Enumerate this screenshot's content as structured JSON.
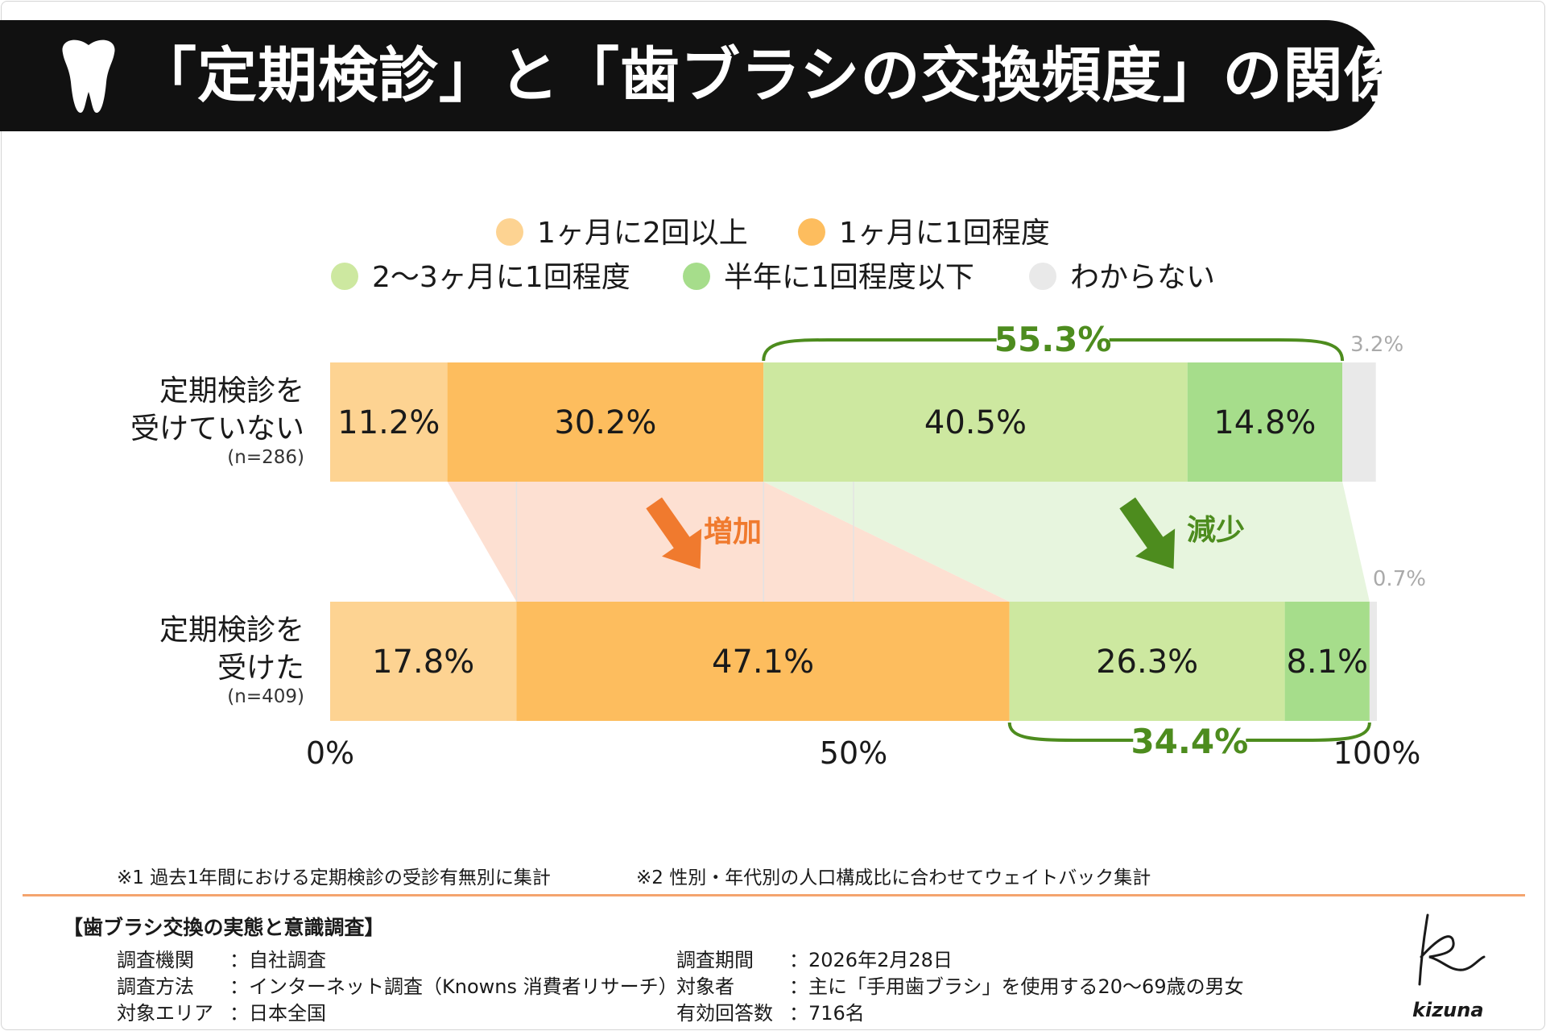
{
  "title": "「定期検診」と「歯ブラシの交換頻度」の関係",
  "chart_data": {
    "type": "stacked-bar-100",
    "title": "「定期検診」と「歯ブラシの交換頻度」の関係",
    "legend": [
      {
        "name": "1ヶ月に2回以上",
        "color": "#fdd392"
      },
      {
        "name": "1ヶ月に1回程度",
        "color": "#fdbd5e"
      },
      {
        "name": "2〜3ヶ月に1回程度",
        "color": "#cde8a0"
      },
      {
        "name": "半年に1回程度以下",
        "color": "#a6dd8b"
      },
      {
        "name": "わからない",
        "color": "#e9e9e9"
      }
    ],
    "categories": [
      {
        "label_line1": "定期検診を",
        "label_line2": "受けていない",
        "n": "(n=286)",
        "values": [
          11.2,
          30.2,
          40.5,
          14.8,
          3.2
        ],
        "labels": [
          "11.2%",
          "30.2%",
          "40.5%",
          "14.8%",
          "3.2%"
        ]
      },
      {
        "label_line1": "定期検診を",
        "label_line2": "受けた",
        "n": "(n=409)",
        "values": [
          17.8,
          47.1,
          26.3,
          8.1,
          0.7
        ],
        "labels": [
          "17.8%",
          "47.1%",
          "26.3%",
          "8.1%",
          "0.7%"
        ]
      }
    ],
    "axis_ticks": [
      "0%",
      "50%",
      "100%"
    ],
    "xlim": [
      0,
      100
    ],
    "annotations": {
      "top_bracket": "55.3%",
      "bottom_bracket": "34.4%",
      "increase_label": "増加",
      "decrease_label": "減少"
    },
    "colors": {
      "increase": "#f07a2e",
      "decrease": "#4d8c1e",
      "increase_band": "#fde0d2",
      "decrease_band": "#e7f5de"
    }
  },
  "notes": {
    "note1": "※1 過去1年間における定期検診の受診有無別に集計",
    "note2": "※2 性別・年代別の人口構成比に合わせてウェイトバック集計"
  },
  "survey": {
    "heading": "【歯ブラシ交換の実態と意識調査】",
    "left": [
      {
        "label": "調査機関",
        "value": "：自社調査"
      },
      {
        "label": "調査方法",
        "value": "：インターネット調査（Knowns 消費者リサーチ）"
      },
      {
        "label": "対象エリア",
        "value": "：日本全国"
      }
    ],
    "right": [
      {
        "label": "調査期間",
        "value": "：2026年2月28日"
      },
      {
        "label": "対象者",
        "value": "：主に「手用歯ブラシ」を使用する20〜69歳の男女"
      },
      {
        "label": "有効回答数",
        "value": "：716名"
      }
    ]
  },
  "logo_text": "kizuna"
}
